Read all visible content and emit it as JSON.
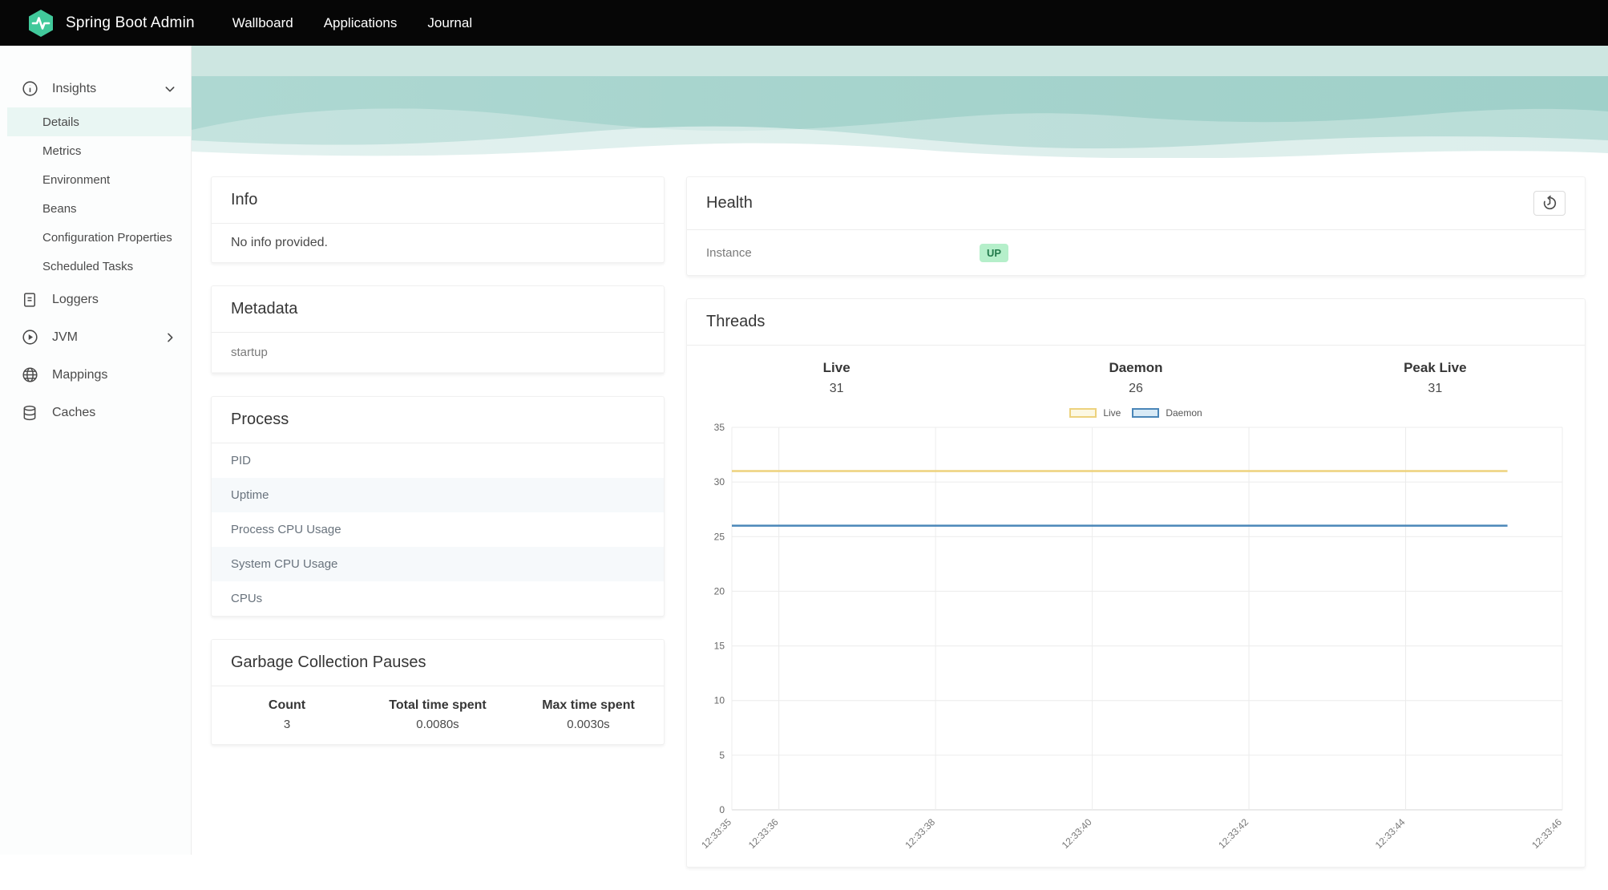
{
  "navbar": {
    "brand": "Spring Boot Admin",
    "brand_color": "#41c99b",
    "items": [
      {
        "label": "Wallboard"
      },
      {
        "label": "Applications"
      },
      {
        "label": "Journal"
      }
    ]
  },
  "sidebar": {
    "insights": {
      "label": "Insights",
      "children": [
        "Details",
        "Metrics",
        "Environment",
        "Beans",
        "Configuration Properties",
        "Scheduled Tasks"
      ],
      "active_child": "Details"
    },
    "items": [
      {
        "label": "Loggers"
      },
      {
        "label": "JVM"
      },
      {
        "label": "Mappings"
      },
      {
        "label": "Caches"
      }
    ]
  },
  "info_card": {
    "title": "Info",
    "body": "No info provided."
  },
  "metadata_card": {
    "title": "Metadata",
    "rows": [
      "startup"
    ]
  },
  "process_card": {
    "title": "Process",
    "rows": [
      "PID",
      "Uptime",
      "Process CPU Usage",
      "System CPU Usage",
      "CPUs"
    ]
  },
  "gc_card": {
    "title": "Garbage Collection Pauses",
    "columns": [
      "Count",
      "Total time spent",
      "Max time spent"
    ],
    "values": [
      "3",
      "0.0080s",
      "0.0030s"
    ]
  },
  "health_card": {
    "title": "Health",
    "row_label": "Instance",
    "status": "UP",
    "status_bg": "#b5efca",
    "status_color": "#227a4b"
  },
  "threads_card": {
    "title": "Threads",
    "stats": [
      {
        "label": "Live",
        "value": "31"
      },
      {
        "label": "Daemon",
        "value": "26"
      },
      {
        "label": "Peak Live",
        "value": "31"
      }
    ]
  },
  "chart_data": {
    "type": "line",
    "title": "",
    "xlabel": "",
    "ylabel": "",
    "ylim": [
      0,
      35
    ],
    "y_tick_step": 5,
    "y_tick_labels": [
      "0",
      "5",
      "10",
      "15",
      "20",
      "25",
      "30",
      "35"
    ],
    "x_tick_labels": [
      "12:33:35",
      "12:33:36",
      "12:33:38",
      "12:33:40",
      "12:33:42",
      "12:33:44",
      "12:33:46"
    ],
    "x_tick_seconds": [
      35.4,
      36,
      38,
      40,
      42,
      44,
      46
    ],
    "x_domain_seconds": [
      35.4,
      46
    ],
    "data_end_seconds": 45.3,
    "grid": true,
    "legend_position": "top-center",
    "series": [
      {
        "name": "Live",
        "value": 31,
        "color": "#edd27d",
        "legend_fill": "#fcf8e3"
      },
      {
        "name": "Daemon",
        "value": 26,
        "color": "#4a86b8",
        "legend_fill": "#d8eaf6"
      }
    ]
  }
}
